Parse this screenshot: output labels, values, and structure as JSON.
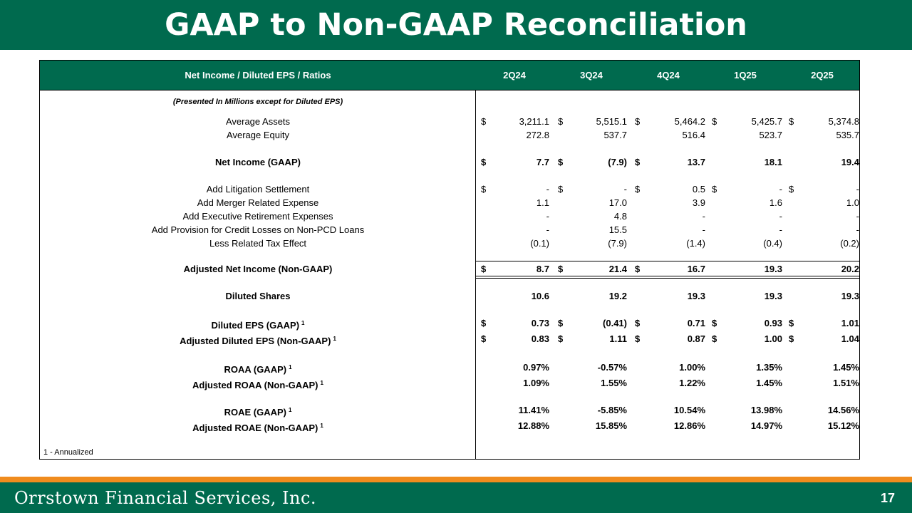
{
  "title": "GAAP to Non-GAAP Reconciliation",
  "table": {
    "header_label": "Net Income / Diluted EPS / Ratios",
    "periods": [
      "2Q24",
      "3Q24",
      "4Q24",
      "1Q25",
      "2Q25"
    ],
    "note": "(Presented In Millions except for Diluted EPS)",
    "rows": [
      {
        "label": "Average Assets",
        "bold": false,
        "dollars": [
          true,
          true,
          true,
          true,
          true
        ],
        "values": [
          "3,211.1",
          "5,515.1",
          "5,464.2",
          "5,425.7",
          "5,374.8"
        ]
      },
      {
        "label": "Average Equity",
        "bold": false,
        "dollars": [
          false,
          false,
          false,
          false,
          false
        ],
        "values": [
          "272.8",
          "537.7",
          "516.4",
          "523.7",
          "535.7"
        ]
      },
      {
        "label": "Net Income (GAAP)",
        "bold": true,
        "dollars": [
          true,
          true,
          true,
          false,
          false
        ],
        "values": [
          "7.7",
          "(7.9)",
          "13.7",
          "18.1",
          "19.4"
        ]
      },
      {
        "label": "Add Litigation Settlement",
        "bold": false,
        "dollars": [
          true,
          true,
          true,
          true,
          true
        ],
        "values": [
          "-",
          "-",
          "0.5",
          "-",
          "-"
        ]
      },
      {
        "label": "Add Merger Related Expense",
        "bold": false,
        "dollars": [
          false,
          false,
          false,
          false,
          false
        ],
        "values": [
          "1.1",
          "17.0",
          "3.9",
          "1.6",
          "1.0"
        ]
      },
      {
        "label": "Add Executive Retirement Expenses",
        "bold": false,
        "dollars": [
          false,
          false,
          false,
          false,
          false
        ],
        "values": [
          "-",
          "4.8",
          "-",
          "-",
          "-"
        ]
      },
      {
        "label": "Add Provision for Credit Losses on Non-PCD Loans",
        "bold": false,
        "dollars": [
          false,
          false,
          false,
          false,
          false
        ],
        "values": [
          "-",
          "15.5",
          "-",
          "-",
          "-"
        ]
      },
      {
        "label": "Less Related Tax Effect",
        "bold": false,
        "dollars": [
          false,
          false,
          false,
          false,
          false
        ],
        "values": [
          "(0.1)",
          "(7.9)",
          "(1.4)",
          "(0.4)",
          "(0.2)"
        ]
      },
      {
        "label": "Adjusted Net Income (Non-GAAP)",
        "bold": true,
        "dollars": [
          true,
          true,
          true,
          false,
          false
        ],
        "values": [
          "8.7",
          "21.4",
          "16.7",
          "19.3",
          "20.2"
        ]
      },
      {
        "label": "Diluted Shares",
        "bold": true,
        "dollars": [
          false,
          false,
          false,
          false,
          false
        ],
        "values": [
          "10.6",
          "19.2",
          "19.3",
          "19.3",
          "19.3"
        ]
      },
      {
        "label": "Diluted EPS (GAAP)",
        "sup": "1",
        "bold": true,
        "dollars": [
          true,
          true,
          true,
          true,
          true
        ],
        "values": [
          "0.73",
          "(0.41)",
          "0.71",
          "0.93",
          "1.01"
        ]
      },
      {
        "label": "Adjusted Diluted EPS (Non-GAAP)",
        "sup": "1",
        "bold": true,
        "dollars": [
          true,
          true,
          true,
          true,
          true
        ],
        "values": [
          "0.83",
          "1.11",
          "0.87",
          "1.00",
          "1.04"
        ]
      },
      {
        "label": "ROAA (GAAP)",
        "sup": "1",
        "bold": true,
        "dollars": [
          false,
          false,
          false,
          false,
          false
        ],
        "values": [
          "0.97%",
          "-0.57%",
          "1.00%",
          "1.35%",
          "1.45%"
        ]
      },
      {
        "label": "Adjusted ROAA (Non-GAAP)",
        "sup": "1",
        "bold": true,
        "dollars": [
          false,
          false,
          false,
          false,
          false
        ],
        "values": [
          "1.09%",
          "1.55%",
          "1.22%",
          "1.45%",
          "1.51%"
        ]
      },
      {
        "label": "ROAE (GAAP)",
        "sup": "1",
        "bold": true,
        "dollars": [
          false,
          false,
          false,
          false,
          false
        ],
        "values": [
          "11.41%",
          "-5.85%",
          "10.54%",
          "13.98%",
          "14.56%"
        ]
      },
      {
        "label": "Adjusted ROAE (Non-GAAP)",
        "sup": "1",
        "bold": true,
        "dollars": [
          false,
          false,
          false,
          false,
          false
        ],
        "values": [
          "12.88%",
          "15.85%",
          "12.86%",
          "14.97%",
          "15.12%"
        ]
      }
    ],
    "footnote": "1 - Annualized"
  },
  "footer": {
    "company": "Orrstown Financial Services, Inc.",
    "page_number": "17"
  },
  "colors": {
    "brand_green": "#006a4e",
    "accent_orange": "#f08c1e"
  }
}
